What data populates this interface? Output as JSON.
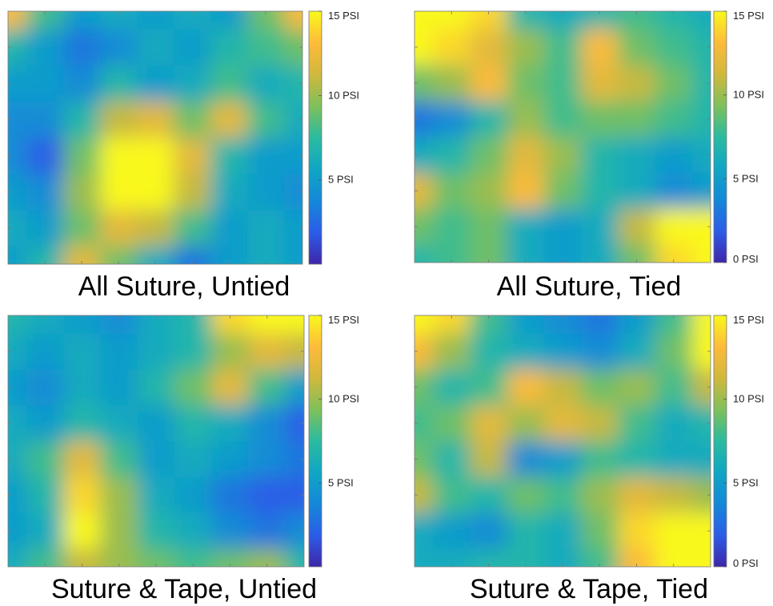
{
  "colors": {
    "colormap": [
      "#3e26a8",
      "#2c5ce8",
      "#1488d8",
      "#10a6c4",
      "#2bbba0",
      "#7fc05a",
      "#d1b83d",
      "#fdbb3a",
      "#f9f81c"
    ]
  },
  "chart_data": [
    {
      "type": "heatmap",
      "title": "All Suture, Untied",
      "colorbar": {
        "min": 0,
        "max": 15,
        "ticks": [
          5,
          10,
          15
        ],
        "tick_labels": [
          "5 PSI",
          "10 PSI",
          "15 PSI"
        ]
      },
      "grid": [
        [
          13,
          8,
          5,
          6,
          5,
          6,
          5,
          9,
          13
        ],
        [
          7,
          5,
          3,
          4,
          6,
          5,
          7,
          8,
          9
        ],
        [
          5,
          5,
          4,
          7,
          5,
          6,
          8,
          6,
          7
        ],
        [
          4,
          4,
          7,
          11,
          12,
          9,
          12,
          8,
          6
        ],
        [
          4,
          2,
          9,
          15,
          15,
          12,
          7,
          5,
          5
        ],
        [
          5,
          4,
          10,
          15,
          15,
          11,
          6,
          5,
          4
        ],
        [
          6,
          5,
          9,
          12,
          11,
          8,
          5,
          6,
          5
        ],
        [
          5,
          7,
          12,
          9,
          6,
          3,
          5,
          6,
          5
        ]
      ]
    },
    {
      "type": "heatmap",
      "title": "All Suture, Tied",
      "colorbar": {
        "min": 0,
        "max": 15,
        "ticks": [
          0,
          5,
          10,
          15
        ],
        "tick_labels": [
          "0 PSI",
          "5 PSI",
          "10 PSI",
          "15 PSI"
        ]
      },
      "grid": [
        [
          15,
          15,
          14,
          7,
          6,
          7,
          8,
          7,
          6
        ],
        [
          15,
          14,
          12,
          10,
          8,
          13,
          9,
          8,
          7
        ],
        [
          9,
          10,
          13,
          9,
          8,
          12,
          11,
          9,
          7
        ],
        [
          3,
          4,
          7,
          10,
          8,
          9,
          9,
          8,
          7
        ],
        [
          6,
          7,
          9,
          12,
          10,
          7,
          6,
          5,
          6
        ],
        [
          12,
          9,
          10,
          13,
          9,
          7,
          6,
          4,
          5
        ],
        [
          9,
          8,
          9,
          6,
          5,
          6,
          11,
          15,
          15
        ],
        [
          7,
          8,
          9,
          6,
          5,
          6,
          9,
          14,
          15
        ]
      ]
    },
    {
      "type": "heatmap",
      "title": "Suture & Tape, Untied",
      "colorbar": {
        "min": 0,
        "max": 15,
        "ticks": [
          5,
          10,
          15
        ],
        "tick_labels": [
          "5 PSI",
          "10 PSI",
          "15 PSI"
        ]
      },
      "grid": [
        [
          7,
          6,
          5,
          4,
          6,
          7,
          14,
          15,
          15
        ],
        [
          6,
          5,
          6,
          5,
          6,
          7,
          10,
          12,
          11
        ],
        [
          5,
          4,
          6,
          5,
          7,
          9,
          12,
          8,
          5
        ],
        [
          6,
          5,
          7,
          6,
          5,
          7,
          6,
          4,
          2
        ],
        [
          6,
          8,
          12,
          8,
          5,
          6,
          5,
          4,
          3
        ],
        [
          5,
          7,
          14,
          10,
          6,
          5,
          3,
          2,
          2
        ],
        [
          5,
          6,
          15,
          10,
          7,
          6,
          4,
          3,
          4
        ],
        [
          6,
          8,
          11,
          10,
          9,
          8,
          9,
          10,
          7
        ]
      ]
    },
    {
      "type": "heatmap",
      "title": "Suture & Tape, Tied",
      "colorbar": {
        "min": 0,
        "max": 15,
        "ticks": [
          0,
          5,
          10,
          15
        ],
        "tick_labels": [
          "0 PSI",
          "5 PSI",
          "10 PSI",
          "15 PSI"
        ]
      },
      "grid": [
        [
          15,
          14,
          8,
          5,
          4,
          3,
          5,
          8,
          15
        ],
        [
          13,
          10,
          7,
          6,
          5,
          4,
          6,
          9,
          15
        ],
        [
          9,
          7,
          8,
          13,
          11,
          9,
          10,
          8,
          11
        ],
        [
          8,
          9,
          12,
          10,
          12,
          11,
          8,
          6,
          7
        ],
        [
          9,
          7,
          11,
          4,
          5,
          8,
          7,
          6,
          6
        ],
        [
          11,
          8,
          7,
          9,
          8,
          10,
          12,
          11,
          10
        ],
        [
          6,
          5,
          4,
          7,
          6,
          9,
          14,
          15,
          15
        ],
        [
          6,
          6,
          7,
          7,
          6,
          8,
          13,
          15,
          15
        ]
      ]
    }
  ]
}
